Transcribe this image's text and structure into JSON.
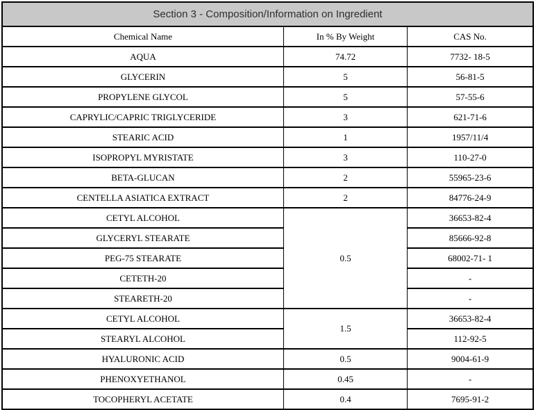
{
  "title": "Section 3 - Composition/Information on Ingredient",
  "columns": {
    "chemical_name": "Chemical Name",
    "weight": "In % By Weight",
    "cas": "CAS No."
  },
  "style": {
    "title_background": "#c8c8c8",
    "border_color": "#000000",
    "text_color": "#000000"
  },
  "rows": [
    {
      "name": "AQUA",
      "weight": "74.72",
      "cas": "7732- 18-5"
    },
    {
      "name": "GLYCERIN",
      "weight": "5",
      "cas": "56-81-5"
    },
    {
      "name": "PROPYLENE GLYCOL",
      "weight": "5",
      "cas": "57-55-6"
    },
    {
      "name": "CAPRYLIC/CAPRIC TRIGLYCERIDE",
      "weight": "3",
      "cas": "621-71-6"
    },
    {
      "name": "STEARIC ACID",
      "weight": "1",
      "cas": "1957/11/4"
    },
    {
      "name": "ISOPROPYL MYRISTATE",
      "weight": "3",
      "cas": "110-27-0"
    },
    {
      "name": "BETA-GLUCAN",
      "weight": "2",
      "cas": "55965-23-6"
    },
    {
      "name": "CENTELLA ASIATICA EXTRACT",
      "weight": "2",
      "cas": "84776-24-9"
    },
    {
      "name": "CETYL ALCOHOL",
      "weight": "0.5",
      "weight_rowspan": 5,
      "cas": "36653-82-4"
    },
    {
      "name": "GLYCERYL STEARATE",
      "cas": "85666-92-8"
    },
    {
      "name": "PEG-75 STEARATE",
      "cas": "68002-71- 1"
    },
    {
      "name": "CETETH-20",
      "cas": "-"
    },
    {
      "name": "STEARETH-20",
      "cas": "-"
    },
    {
      "name": "CETYL ALCOHOL",
      "weight": "1.5",
      "weight_rowspan": 2,
      "cas": "36653-82-4"
    },
    {
      "name": "STEARYL ALCOHOL",
      "cas": "112-92-5"
    },
    {
      "name": "HYALURONIC ACID",
      "weight": "0.5",
      "cas": "9004-61-9"
    },
    {
      "name": "PHENOXYETHANOL",
      "weight": "0.45",
      "cas": "-"
    },
    {
      "name": "TOCOPHERYL ACETATE",
      "weight": "0.4",
      "cas": "7695-91-2"
    }
  ]
}
